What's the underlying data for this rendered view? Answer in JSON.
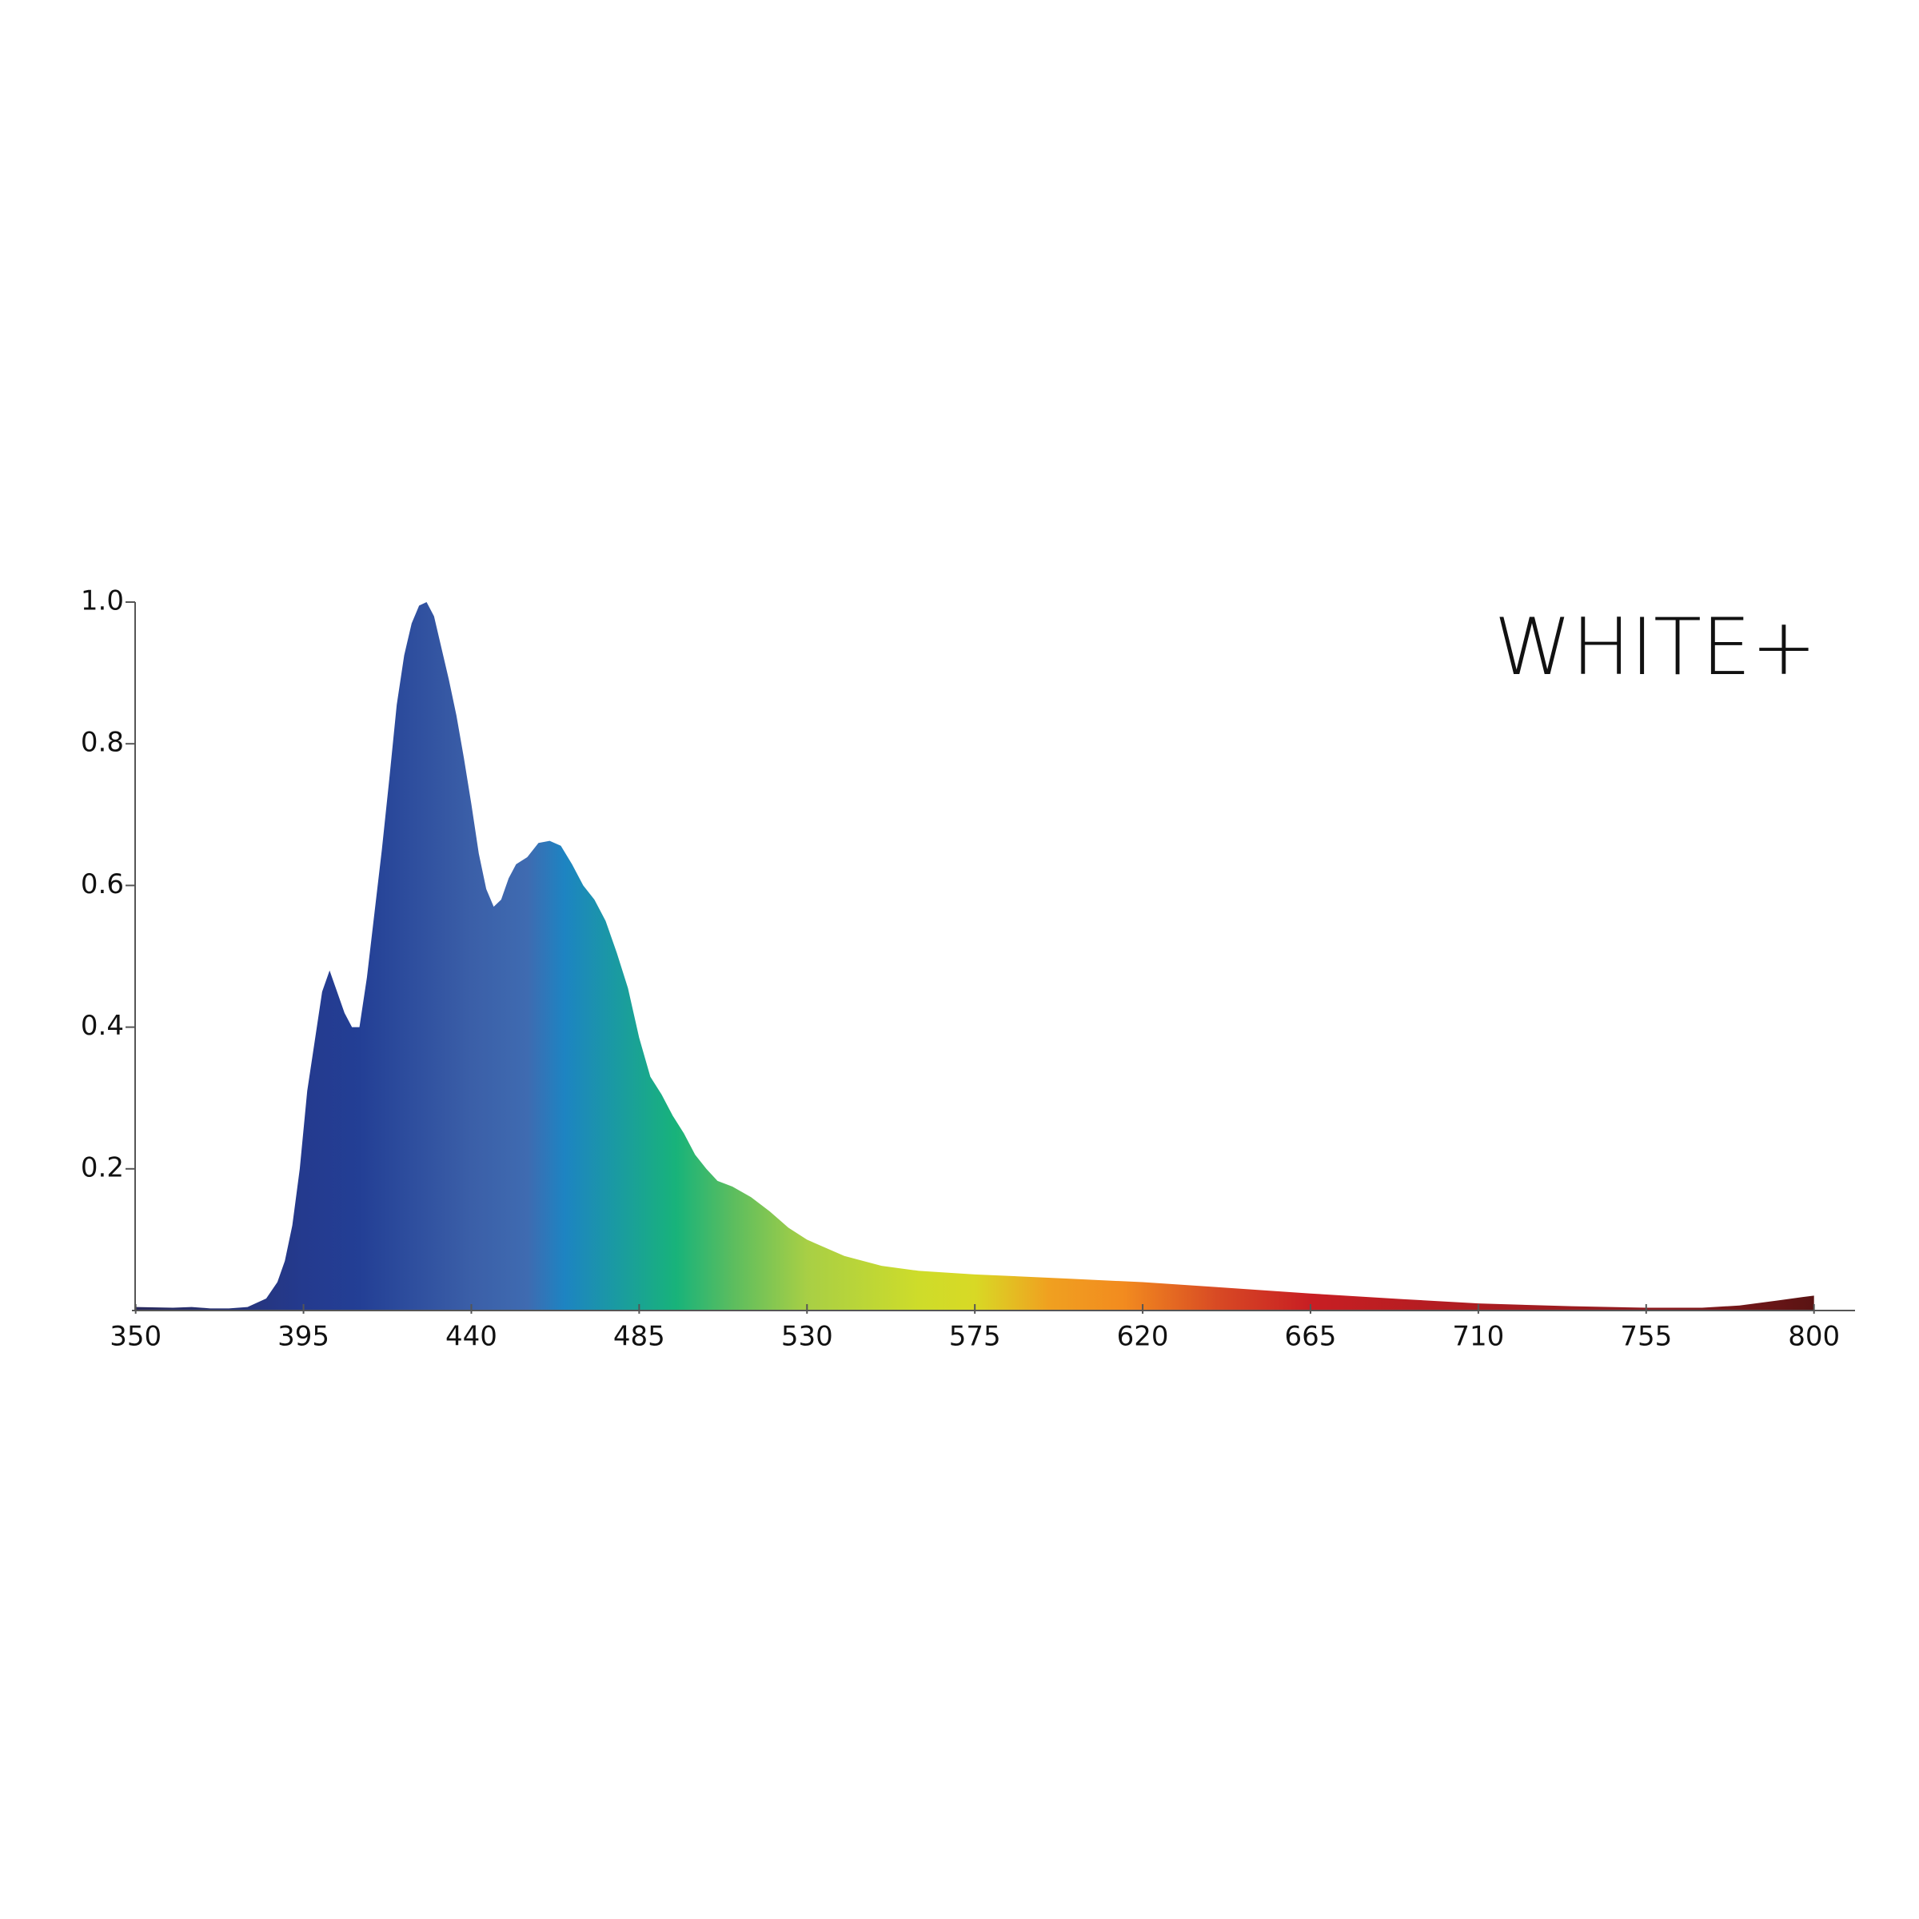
{
  "chart_data": {
    "type": "area",
    "title": "WHITE+",
    "x": [
      350,
      360,
      365,
      370,
      375,
      380,
      385,
      388,
      390,
      392,
      394,
      396,
      398,
      400,
      402,
      404,
      406,
      408,
      410,
      412,
      414,
      416,
      418,
      420,
      422,
      424,
      426,
      428,
      430,
      432,
      434,
      436,
      438,
      440,
      442,
      444,
      446,
      448,
      450,
      452,
      455,
      458,
      461,
      464,
      467,
      470,
      473,
      476,
      479,
      482,
      485,
      488,
      491,
      494,
      497,
      500,
      503,
      506,
      510,
      515,
      520,
      525,
      530,
      540,
      550,
      560,
      575,
      600,
      620,
      640,
      665,
      690,
      710,
      735,
      755,
      770,
      780,
      790,
      797,
      800
    ],
    "values": [
      0.005,
      0.004,
      0.005,
      0.003,
      0.003,
      0.005,
      0.017,
      0.04,
      0.07,
      0.12,
      0.2,
      0.31,
      0.38,
      0.45,
      0.48,
      0.45,
      0.42,
      0.4,
      0.4,
      0.47,
      0.56,
      0.65,
      0.75,
      0.855,
      0.925,
      0.97,
      0.995,
      1.0,
      0.98,
      0.935,
      0.89,
      0.84,
      0.78,
      0.715,
      0.645,
      0.595,
      0.57,
      0.58,
      0.61,
      0.63,
      0.64,
      0.66,
      0.663,
      0.656,
      0.63,
      0.6,
      0.58,
      0.55,
      0.505,
      0.455,
      0.385,
      0.33,
      0.305,
      0.275,
      0.25,
      0.22,
      0.2,
      0.183,
      0.175,
      0.16,
      0.14,
      0.117,
      0.1,
      0.077,
      0.063,
      0.056,
      0.051,
      0.045,
      0.04,
      0.033,
      0.024,
      0.016,
      0.01,
      0.006,
      0.004,
      0.004,
      0.007,
      0.014,
      0.019,
      0.021
    ],
    "color_stops": [
      {
        "x": 350,
        "color": "#2a2a5c"
      },
      {
        "x": 395,
        "color": "#243a8e"
      },
      {
        "x": 410,
        "color": "#233f95"
      },
      {
        "x": 440,
        "color": "#3b5fa8"
      },
      {
        "x": 455,
        "color": "#3f6bb1"
      },
      {
        "x": 465,
        "color": "#1d84c2"
      },
      {
        "x": 480,
        "color": "#1a9c9f"
      },
      {
        "x": 495,
        "color": "#18b37a"
      },
      {
        "x": 510,
        "color": "#5bbd5f"
      },
      {
        "x": 530,
        "color": "#a8cf45"
      },
      {
        "x": 560,
        "color": "#cedc2a"
      },
      {
        "x": 575,
        "color": "#d8d925"
      },
      {
        "x": 595,
        "color": "#f0a020"
      },
      {
        "x": 615,
        "color": "#f28b1f"
      },
      {
        "x": 640,
        "color": "#d84a24"
      },
      {
        "x": 665,
        "color": "#c81e23"
      },
      {
        "x": 700,
        "color": "#b31d22"
      },
      {
        "x": 760,
        "color": "#8a1b1f"
      },
      {
        "x": 800,
        "color": "#5a1313"
      }
    ],
    "xlim": [
      349,
      811
    ],
    "xticks": [
      350,
      395,
      440,
      485,
      530,
      575,
      620,
      665,
      710,
      755,
      800
    ],
    "ylim": [
      0,
      1
    ],
    "yticks": [
      0.2,
      0.4,
      0.6,
      0.8,
      {
        "value": 1,
        "label": "1.0"
      }
    ]
  }
}
